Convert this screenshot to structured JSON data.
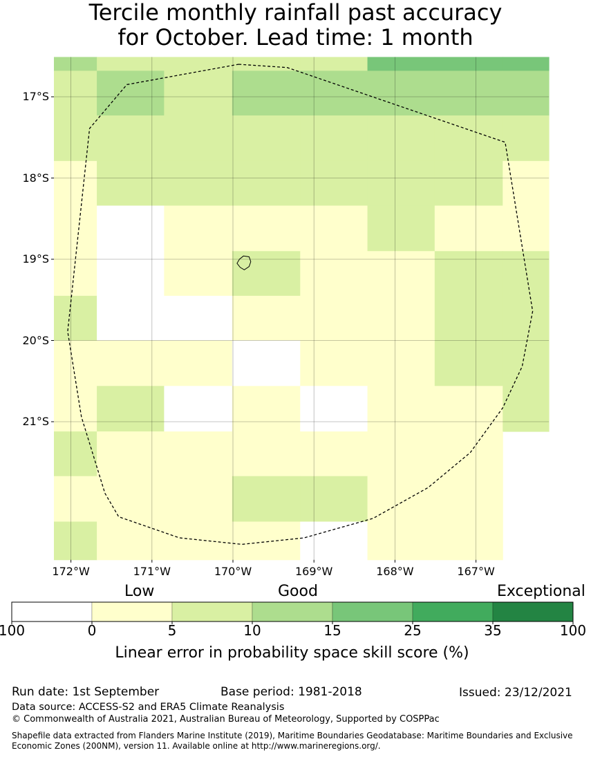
{
  "chart_data": {
    "type": "heatmap",
    "title_lines": [
      "Tercile monthly rainfall past accuracy",
      "for October. Lead time: 1 month"
    ],
    "x_ticks": [
      {
        "lon": -172,
        "label": "172°W"
      },
      {
        "lon": -171,
        "label": "171°W"
      },
      {
        "lon": -170,
        "label": "170°W"
      },
      {
        "lon": -169,
        "label": "169°W"
      },
      {
        "lon": -168,
        "label": "168°W"
      },
      {
        "lon": -167,
        "label": "167°W"
      }
    ],
    "y_ticks": [
      {
        "lat": -17,
        "label": "17°S"
      },
      {
        "lat": -18,
        "label": "18°S"
      },
      {
        "lat": -19,
        "label": "19°S"
      },
      {
        "lat": -20,
        "label": "20°S"
      },
      {
        "lat": -21,
        "label": "21°S"
      }
    ],
    "grid": true,
    "lon_edges": [
      -172.21,
      -171.68,
      -170.85,
      -170.01,
      -169.17,
      -168.34,
      -167.51,
      -166.67,
      -166.1
    ],
    "lat_edges": [
      -16.51,
      -16.68,
      -17.23,
      -17.79,
      -18.34,
      -18.9,
      -19.45,
      -20.0,
      -20.56,
      -21.12,
      -21.67,
      -22.23,
      -22.7
    ],
    "cells": [
      [
        3,
        2,
        2,
        2,
        2,
        4,
        4,
        4
      ],
      [
        2,
        3,
        2,
        3,
        3,
        3,
        3,
        3
      ],
      [
        2,
        2,
        2,
        2,
        2,
        2,
        2,
        2
      ],
      [
        1,
        2,
        2,
        2,
        2,
        2,
        2,
        1
      ],
      [
        1,
        0,
        1,
        1,
        1,
        2,
        1,
        1
      ],
      [
        1,
        0,
        1,
        2,
        1,
        1,
        2,
        2
      ],
      [
        2,
        0,
        0,
        1,
        1,
        1,
        2,
        2
      ],
      [
        1,
        1,
        1,
        0,
        1,
        1,
        2,
        2
      ],
      [
        1,
        2,
        0,
        1,
        0,
        1,
        1,
        2
      ],
      [
        2,
        1,
        1,
        1,
        1,
        1,
        1,
        null
      ],
      [
        1,
        1,
        1,
        2,
        2,
        1,
        1,
        null
      ],
      [
        2,
        1,
        1,
        1,
        0,
        1,
        1,
        null
      ]
    ],
    "eez_boundary": [
      [
        -169.93,
        -16.6
      ],
      [
        -169.33,
        -16.64
      ],
      [
        -166.64,
        -17.56
      ],
      [
        -166.3,
        -19.64
      ],
      [
        -166.43,
        -20.32
      ],
      [
        -166.67,
        -20.83
      ],
      [
        -167.07,
        -21.38
      ],
      [
        -167.59,
        -21.81
      ],
      [
        -168.27,
        -22.19
      ],
      [
        -169.12,
        -22.43
      ],
      [
        -169.89,
        -22.51
      ],
      [
        -170.66,
        -22.43
      ],
      [
        -171.41,
        -22.17
      ],
      [
        -171.58,
        -21.88
      ],
      [
        -171.87,
        -20.94
      ],
      [
        -172.04,
        -19.89
      ],
      [
        -171.77,
        -17.39
      ],
      [
        -171.31,
        -16.85
      ],
      [
        -169.93,
        -16.6
      ]
    ],
    "island": [
      [
        -169.87,
        -18.96
      ],
      [
        -169.8,
        -18.97
      ],
      [
        -169.78,
        -19.03
      ],
      [
        -169.8,
        -19.09
      ],
      [
        -169.86,
        -19.13
      ],
      [
        -169.91,
        -19.1
      ],
      [
        -169.95,
        -19.05
      ],
      [
        -169.92,
        -19.0
      ],
      [
        -169.87,
        -18.96
      ]
    ],
    "legend": {
      "categories": [
        "Low",
        "Good",
        "Exceptional"
      ],
      "bin_edges": [
        "100",
        "0",
        "5",
        "10",
        "15",
        "25",
        "35",
        "100"
      ],
      "colors": [
        "#ffffff",
        "#ffffcc",
        "#d9f0a3",
        "#addd8e",
        "#78c679",
        "#41ab5d",
        "#238443"
      ],
      "label": "Linear error in probability space skill score (%)"
    }
  },
  "footer": {
    "run_date": "Run date: 1st September",
    "base_period": "Base period: 1981-2018",
    "issued": "Issued: 23/12/2021",
    "data_source": "Data source: ACCESS-S2 and ERA5 Climate Reanalysis",
    "copyright": "© Commonwealth of Australia 2021, Australian Bureau of Meteorology, Supported by COSPPac",
    "shapefile_1": "Shapefile data extracted from Flanders Marine Institute (2019), Maritime Boundaries Geodatabase: Maritime Boundaries and Exclusive",
    "shapefile_2": "Economic Zones (200NM), version 11. Available online at http://www.marineregions.org/."
  }
}
